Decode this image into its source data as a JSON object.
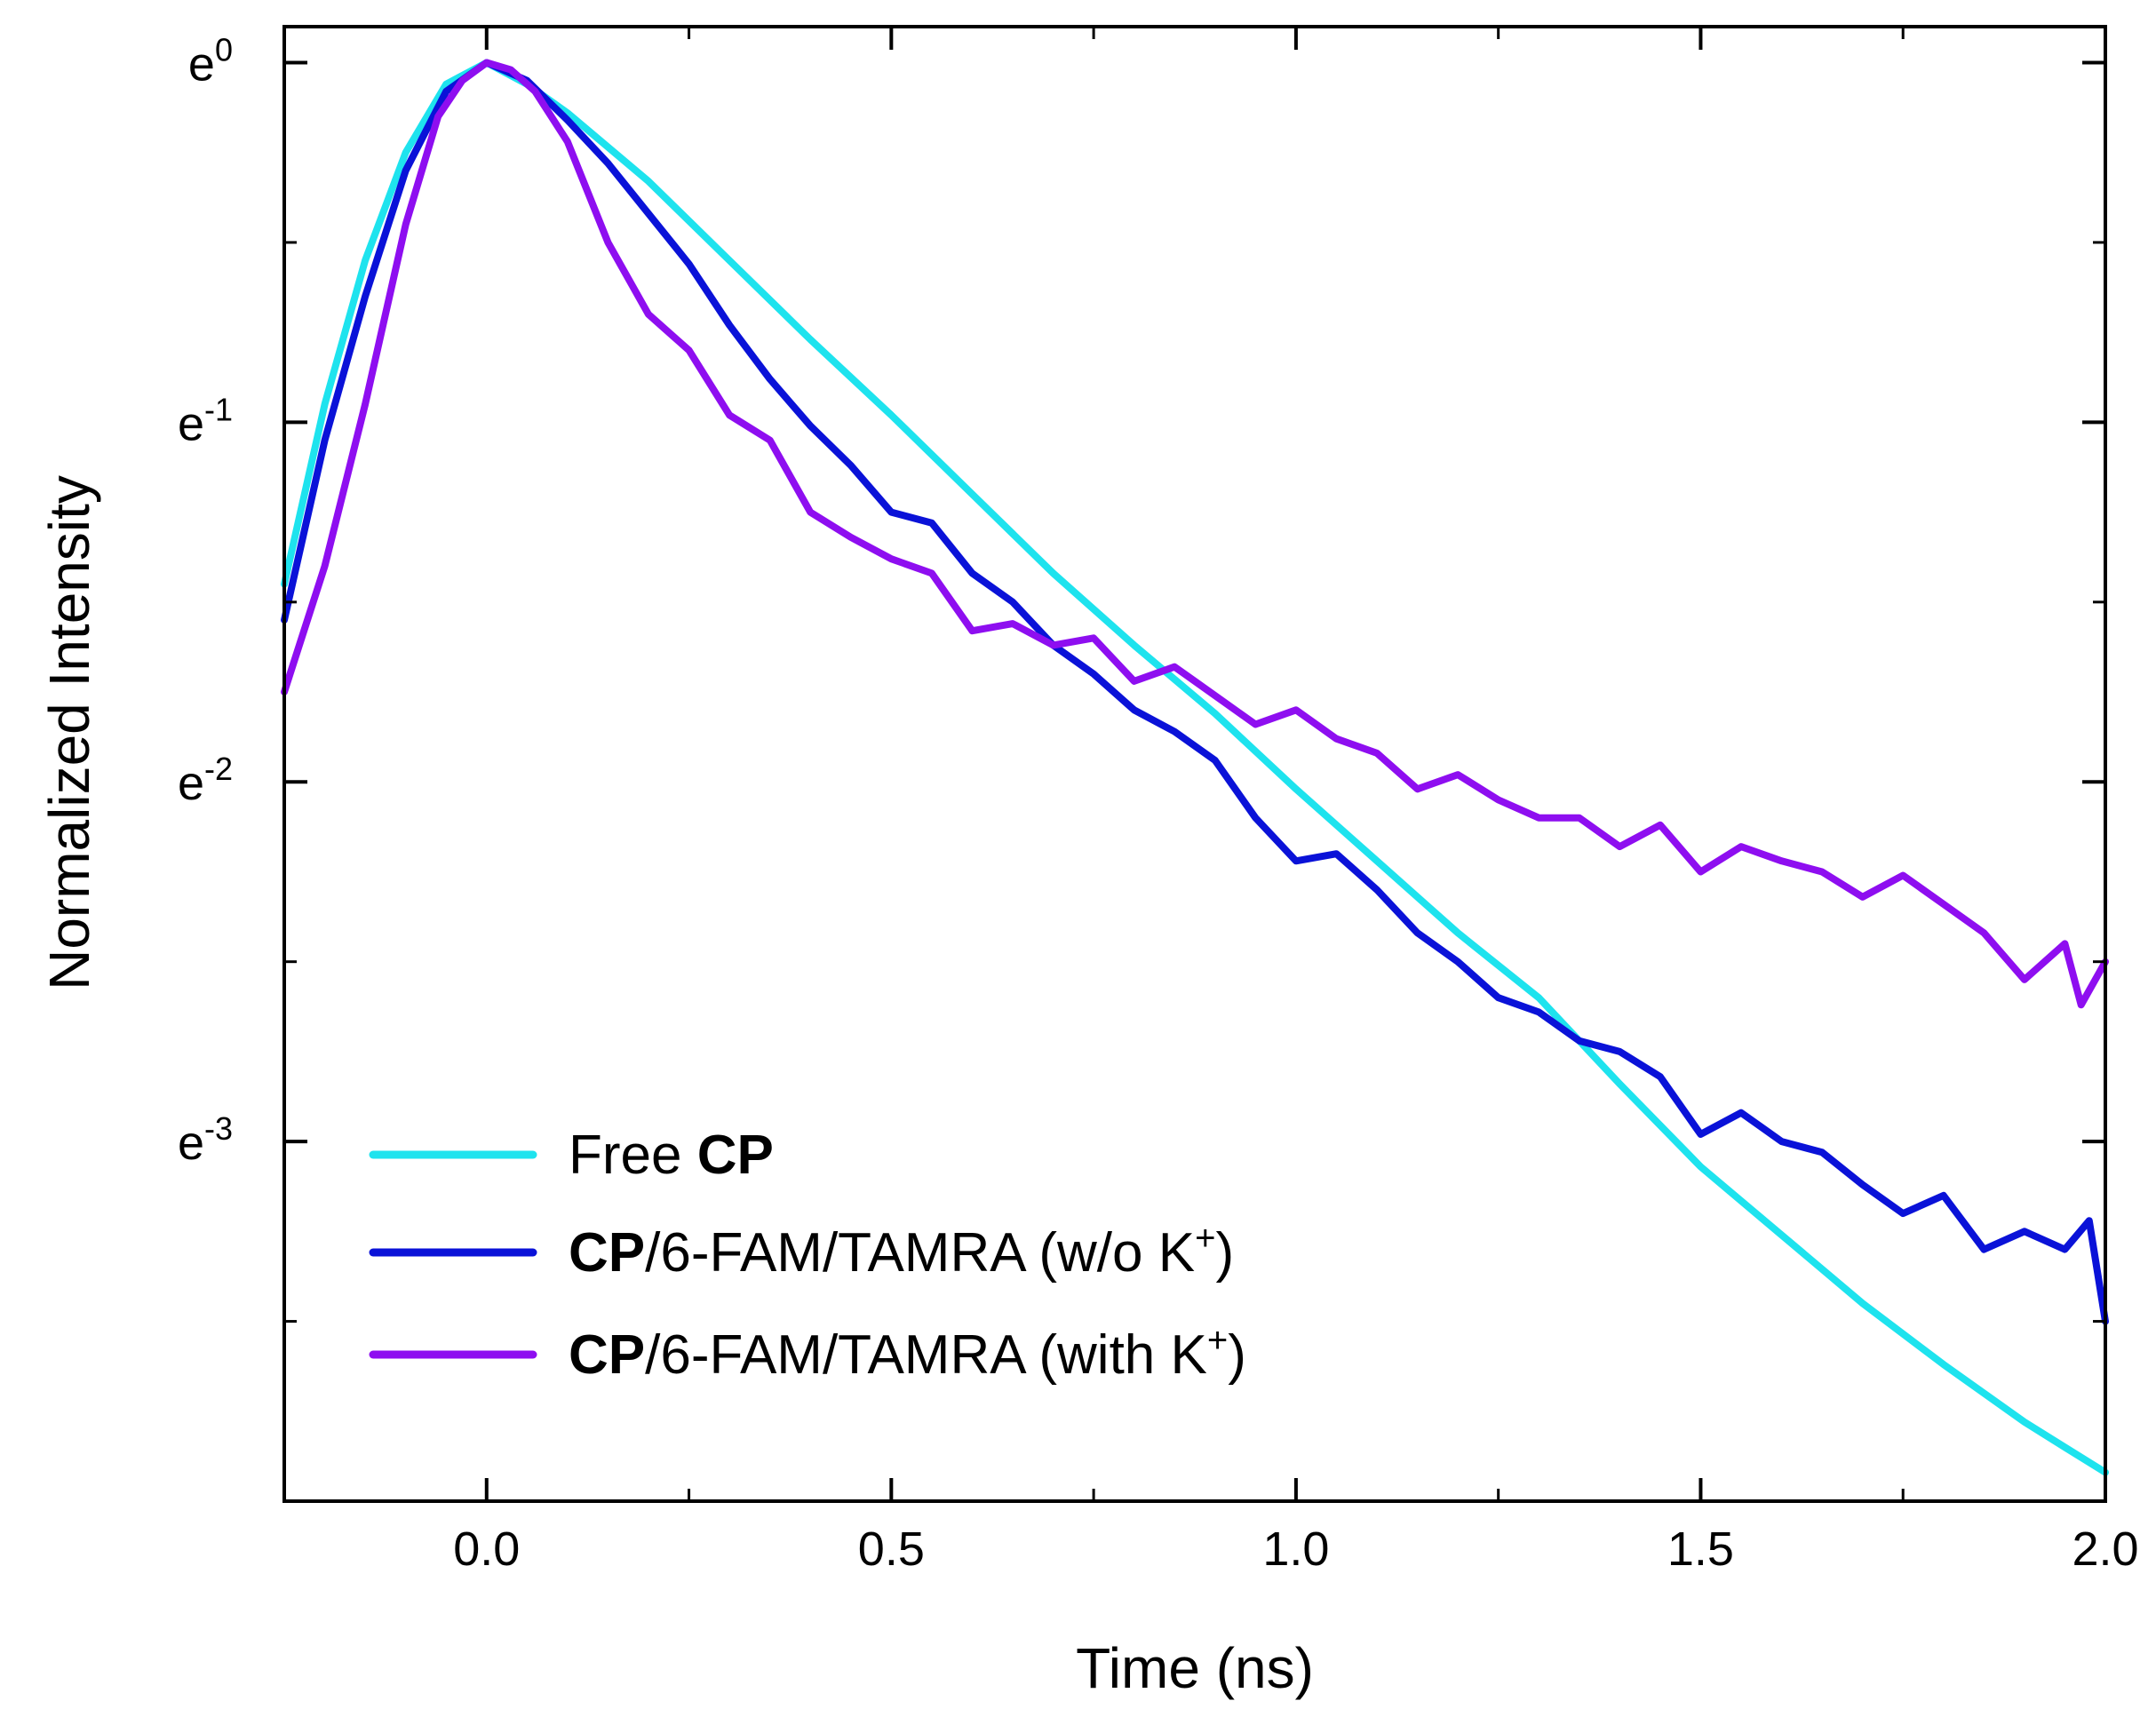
{
  "chart_data": {
    "type": "line",
    "title": "",
    "xlabel": "Time (ns)",
    "ylabel": "Normalized Intensity",
    "xlim": [
      -0.25,
      2.0
    ],
    "ylim": [
      -4.0,
      0.1
    ],
    "y_scale": "natural-log (labels as powers of e)",
    "x_ticks": [
      0.0,
      0.5,
      1.0,
      1.5,
      2.0
    ],
    "x_tick_labels": [
      "0.0",
      "0.5",
      "1.0",
      "1.5",
      "2.0"
    ],
    "y_ticks": [
      0,
      -1,
      -2,
      -3
    ],
    "y_tick_base": "e",
    "y_tick_exponents": [
      "0",
      "-1",
      "-2",
      "-3"
    ],
    "legend_position": "bottom-left",
    "series": [
      {
        "name": "Free CP",
        "legend_bold": "CP",
        "legend_prefix": "Free ",
        "legend_suffix": "",
        "color": "#1ee3ee",
        "x": [
          -0.25,
          -0.2,
          -0.15,
          -0.1,
          -0.05,
          0.0,
          0.05,
          0.1,
          0.2,
          0.3,
          0.4,
          0.5,
          0.6,
          0.7,
          0.8,
          0.9,
          1.0,
          1.1,
          1.2,
          1.3,
          1.4,
          1.5,
          1.6,
          1.7,
          1.8,
          1.9,
          1.95,
          2.0
        ],
        "y": [
          -1.45,
          -0.95,
          -0.55,
          -0.25,
          -0.06,
          0.0,
          -0.06,
          -0.14,
          -0.33,
          -0.55,
          -0.77,
          -0.98,
          -1.2,
          -1.42,
          -1.62,
          -1.81,
          -2.02,
          -2.22,
          -2.42,
          -2.6,
          -2.84,
          -3.07,
          -3.26,
          -3.45,
          -3.62,
          -3.78,
          -3.85,
          -3.92
        ]
      },
      {
        "name": "CP/6-FAM/TAMRA (w/o K+)",
        "legend_bold": "CP",
        "legend_prefix": "",
        "legend_suffix": "/6-FAM/TAMRA (w/o K",
        "legend_sup": "+",
        "legend_end": ")",
        "color": "#0a12d8",
        "x": [
          -0.25,
          -0.2,
          -0.15,
          -0.1,
          -0.05,
          0.0,
          0.05,
          0.1,
          0.15,
          0.2,
          0.25,
          0.3,
          0.35,
          0.4,
          0.45,
          0.5,
          0.55,
          0.6,
          0.65,
          0.7,
          0.75,
          0.8,
          0.85,
          0.9,
          0.95,
          1.0,
          1.05,
          1.1,
          1.15,
          1.2,
          1.25,
          1.3,
          1.35,
          1.4,
          1.45,
          1.5,
          1.55,
          1.6,
          1.65,
          1.7,
          1.75,
          1.8,
          1.85,
          1.9,
          1.95,
          1.98,
          2.0
        ],
        "y": [
          -1.55,
          -1.05,
          -0.65,
          -0.3,
          -0.08,
          0.0,
          -0.05,
          -0.16,
          -0.28,
          -0.42,
          -0.56,
          -0.73,
          -0.88,
          -1.01,
          -1.12,
          -1.25,
          -1.28,
          -1.42,
          -1.5,
          -1.62,
          -1.7,
          -1.8,
          -1.86,
          -1.94,
          -2.1,
          -2.22,
          -2.2,
          -2.3,
          -2.42,
          -2.5,
          -2.6,
          -2.64,
          -2.72,
          -2.75,
          -2.82,
          -2.98,
          -2.92,
          -3.0,
          -3.03,
          -3.12,
          -3.2,
          -3.15,
          -3.3,
          -3.25,
          -3.3,
          -3.22,
          -3.5
        ]
      },
      {
        "name": "CP/6-FAM/TAMRA (with K+)",
        "legend_bold": "CP",
        "legend_prefix": "",
        "legend_suffix": "/6-FAM/TAMRA (with K",
        "legend_sup": "+",
        "legend_end": ")",
        "color": "#8e0ef0",
        "x": [
          -0.25,
          -0.2,
          -0.15,
          -0.1,
          -0.06,
          -0.03,
          0.0,
          0.03,
          0.06,
          0.1,
          0.15,
          0.2,
          0.25,
          0.3,
          0.35,
          0.4,
          0.45,
          0.5,
          0.55,
          0.6,
          0.65,
          0.7,
          0.75,
          0.8,
          0.85,
          0.9,
          0.95,
          1.0,
          1.05,
          1.1,
          1.15,
          1.2,
          1.25,
          1.3,
          1.35,
          1.4,
          1.45,
          1.5,
          1.55,
          1.6,
          1.65,
          1.7,
          1.75,
          1.8,
          1.85,
          1.9,
          1.95,
          1.97,
          2.0
        ],
        "y": [
          -1.75,
          -1.4,
          -0.95,
          -0.45,
          -0.15,
          -0.05,
          0.0,
          -0.02,
          -0.08,
          -0.22,
          -0.5,
          -0.7,
          -0.8,
          -0.98,
          -1.05,
          -1.25,
          -1.32,
          -1.38,
          -1.42,
          -1.58,
          -1.56,
          -1.62,
          -1.6,
          -1.72,
          -1.68,
          -1.76,
          -1.84,
          -1.8,
          -1.88,
          -1.92,
          -2.02,
          -1.98,
          -2.05,
          -2.1,
          -2.1,
          -2.18,
          -2.12,
          -2.25,
          -2.18,
          -2.22,
          -2.25,
          -2.32,
          -2.26,
          -2.34,
          -2.42,
          -2.55,
          -2.45,
          -2.62,
          -2.5
        ]
      }
    ]
  }
}
